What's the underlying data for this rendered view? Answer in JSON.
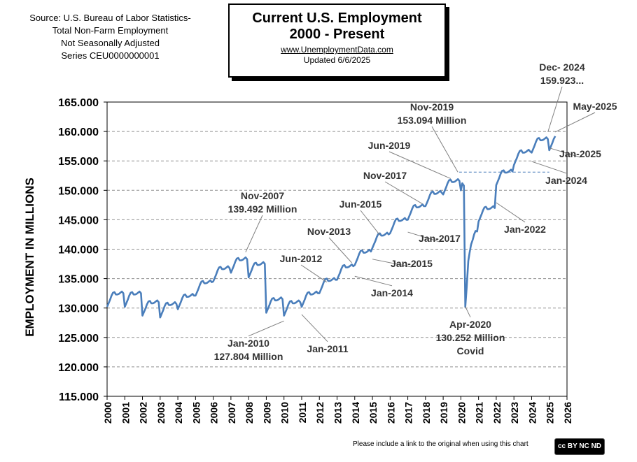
{
  "source_lines": [
    "Source: U.S.  Bureau of Labor Statistics-",
    "Total Non-Farm Employment",
    "Not Seasonally Adjusted",
    "Series CEU0000000001"
  ],
  "title_box": {
    "line1": "Current U.S. Employment",
    "line2": "2000 - Present",
    "site": "www.UnemploymentData.com",
    "updated": "Updated   6/6/2025"
  },
  "footer_note": "Please include a link to the original when using this chart",
  "license_badge": "cc BY NC ND",
  "colors": {
    "line": "#4a7ebb",
    "grid": "#909090",
    "text": "#000000",
    "reference_line": "#4a7ebb"
  },
  "chart_data": {
    "type": "line",
    "ylabel": "EMPLOYMENT IN MILLIONS",
    "xlim": [
      2000,
      2026
    ],
    "ylim": [
      115,
      165
    ],
    "ytick_labels": [
      "115.000",
      "120.000",
      "125.000",
      "130.000",
      "135.000",
      "140.000",
      "145.000",
      "150.000",
      "155.000",
      "160.000",
      "165.000"
    ],
    "xtick_labels": [
      "2000",
      "2001",
      "2002",
      "2003",
      "2004",
      "2005",
      "2006",
      "2007",
      "2008",
      "2009",
      "2010",
      "2011",
      "2012",
      "2013",
      "2014",
      "2015",
      "2016",
      "2017",
      "2018",
      "2019",
      "2020",
      "2021",
      "2022",
      "2023",
      "2024",
      "2025",
      "2026"
    ],
    "grid": "horizontal dashed",
    "series": [
      {
        "year_averages": [
          [
            2000,
            131.8
          ],
          [
            2001,
            131.8
          ],
          [
            2002,
            130.3
          ],
          [
            2003,
            130.0
          ],
          [
            2004,
            131.4
          ],
          [
            2005,
            133.7
          ],
          [
            2006,
            136.1
          ],
          [
            2007,
            137.6
          ],
          [
            2008,
            136.8
          ],
          [
            2009,
            130.8
          ],
          [
            2010,
            130.3
          ],
          [
            2011,
            131.8
          ],
          [
            2012,
            134.1
          ],
          [
            2013,
            136.4
          ],
          [
            2014,
            138.9
          ],
          [
            2015,
            141.8
          ],
          [
            2016,
            144.3
          ],
          [
            2017,
            146.6
          ],
          [
            2018,
            148.9
          ],
          [
            2019,
            150.9
          ],
          [
            2021,
            146.3
          ],
          [
            2022,
            152.5
          ],
          [
            2023,
            155.9
          ],
          [
            2024,
            158.0
          ],
          [
            2025,
            158.4
          ]
        ],
        "covid_period": [
          [
            2020.0,
            150.0
          ],
          [
            2020.08,
            151.2
          ],
          [
            2020.17,
            150.8
          ],
          [
            2020.25,
            130.2
          ],
          [
            2020.33,
            133.5
          ],
          [
            2020.42,
            138.0
          ],
          [
            2020.5,
            139.5
          ],
          [
            2020.58,
            140.8
          ],
          [
            2020.67,
            141.6
          ],
          [
            2020.75,
            142.5
          ],
          [
            2020.83,
            143.1
          ],
          [
            2020.92,
            143.0
          ]
        ]
      }
    ],
    "reference_line": {
      "y": 153.094,
      "x_from": 2019.9,
      "x_to": 2025.0
    },
    "annotations": [
      {
        "text": [
          "Nov-2007",
          "139.492 Million"
        ],
        "x": 2007.83,
        "y": 139.492
      },
      {
        "text": [
          "Jan-2010",
          "127.804 Million"
        ],
        "x": 2010.0,
        "y": 127.804
      },
      {
        "text": [
          "Jan-2011"
        ],
        "x": 2011.0,
        "y": 128.9
      },
      {
        "text": [
          "Jun-2012"
        ],
        "x": 2012.42,
        "y": 134.4
      },
      {
        "text": [
          "Nov-2013"
        ],
        "x": 2013.83,
        "y": 137.7
      },
      {
        "text": [
          "Jan-2014"
        ],
        "x": 2014.0,
        "y": 135.4
      },
      {
        "text": [
          "Jun-2015"
        ],
        "x": 2015.42,
        "y": 142.4
      },
      {
        "text": [
          "Jan-2015"
        ],
        "x": 2015.0,
        "y": 138.3
      },
      {
        "text": [
          "Nov-2017"
        ],
        "x": 2017.83,
        "y": 147.7
      },
      {
        "text": [
          "Jan-2017"
        ],
        "x": 2017.0,
        "y": 142.9
      },
      {
        "text": [
          "Jun-2019"
        ],
        "x": 2019.42,
        "y": 152.0
      },
      {
        "text": [
          "Nov-2019",
          "153.094 Million"
        ],
        "x": 2019.83,
        "y": 153.094
      },
      {
        "text": [
          "Apr-2020",
          "130.252 Million",
          "Covid"
        ],
        "x": 2020.25,
        "y": 130.252
      },
      {
        "text": [
          "Jan-2022"
        ],
        "x": 2022.0,
        "y": 147.9
      },
      {
        "text": [
          "Jan-2024"
        ],
        "x": 2024.0,
        "y": 154.9
      },
      {
        "text": [
          "Dec- 2024",
          "159.923..."
        ],
        "x": 2024.92,
        "y": 159.923
      },
      {
        "text": [
          "Jan-2025"
        ],
        "x": 2025.0,
        "y": 157.2
      },
      {
        "text": [
          "May-2025"
        ],
        "x": 2025.33,
        "y": 159.9
      }
    ]
  }
}
